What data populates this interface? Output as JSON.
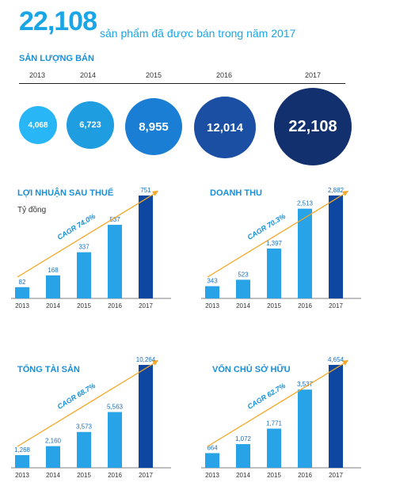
{
  "header": {
    "number": "22,108",
    "text": "sản phẩm đã được bán trong năm 2017"
  },
  "sales": {
    "title": "SẢN LƯỢNG BÁN",
    "years": [
      "2013",
      "2014",
      "2015",
      "2016",
      "2017"
    ],
    "values_text": [
      "4,068",
      "6,723",
      "8,955",
      "12,014",
      "22,108"
    ],
    "colors": [
      "#29b6f6",
      "#1e9ee0",
      "#1a7fd4",
      "#1b4fa3",
      "#12306e"
    ]
  },
  "chart_data": [
    {
      "type": "bar",
      "title": "LỢI NHUẬN SAU THUẾ",
      "unit": "Tỷ đồng",
      "categories": [
        "2013",
        "2014",
        "2015",
        "2016",
        "2017"
      ],
      "values": [
        82,
        168,
        337,
        537,
        751
      ],
      "value_labels": [
        "82",
        "168",
        "337",
        "537",
        "751"
      ],
      "cagr_label": "CAGR 74.0%"
    },
    {
      "type": "bar",
      "title": "DOANH THU",
      "unit": "",
      "categories": [
        "2013",
        "2014",
        "2015",
        "2016",
        "2017"
      ],
      "values": [
        343,
        523,
        1397,
        2513,
        2882
      ],
      "value_labels": [
        "343",
        "523",
        "1,397",
        "2,513",
        "2,882"
      ],
      "cagr_label": "CAGR 70.3%"
    },
    {
      "type": "bar",
      "title": "TỔNG TÀI SẢN",
      "unit": "",
      "categories": [
        "2013",
        "2014",
        "2015",
        "2016",
        "2017"
      ],
      "values": [
        1268,
        2160,
        3573,
        5563,
        10264
      ],
      "value_labels": [
        "1,268",
        "2,160",
        "3,573",
        "5,563",
        "10,264"
      ],
      "cagr_label": "CAGR 68.7%"
    },
    {
      "type": "bar",
      "title": "VỐN CHỦ SỞ HỮU",
      "unit": "",
      "categories": [
        "2013",
        "2014",
        "2015",
        "2016",
        "2017"
      ],
      "values": [
        664,
        1072,
        1771,
        3537,
        4654
      ],
      "value_labels": [
        "664",
        "1,072",
        "1,771",
        "3,537",
        "4,654"
      ],
      "cagr_label": "CAGR 62.7%"
    }
  ],
  "colors": {
    "accent": "#1aa6e6",
    "bar": "#29a3e8",
    "bar_last": "#0d47a1",
    "arrow": "#f5a623",
    "title": "#1a8fd6"
  }
}
